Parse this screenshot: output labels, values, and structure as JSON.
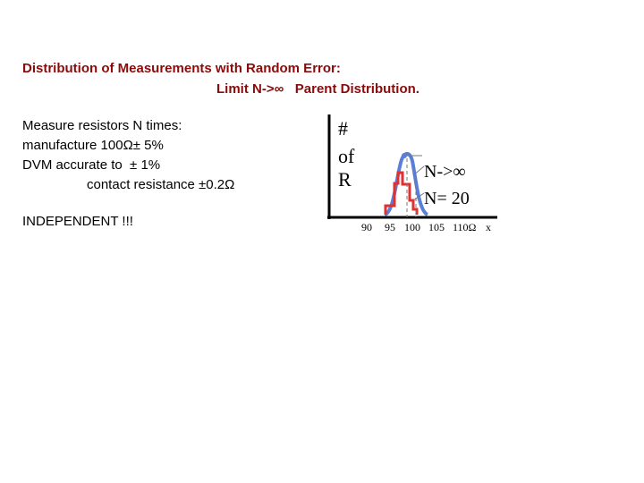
{
  "title": {
    "line1": "Distribution of Measurements with Random Error:",
    "line2": "Limit N->∞   Parent Distribution."
  },
  "body": [
    "Measure resistors N times:",
    "manufacture 100Ω± 5%",
    "DVM accurate to  ± 1%",
    "contact resistance ±0.2Ω",
    "INDEPENDENT !!!"
  ],
  "diagram": {
    "y_label": [
      "#",
      "of",
      "R"
    ],
    "x_ticks": [
      "90",
      "95",
      "100",
      "105",
      "110Ω"
    ],
    "x_label": "x",
    "curves": [
      "N->∞",
      "N= 20"
    ]
  }
}
